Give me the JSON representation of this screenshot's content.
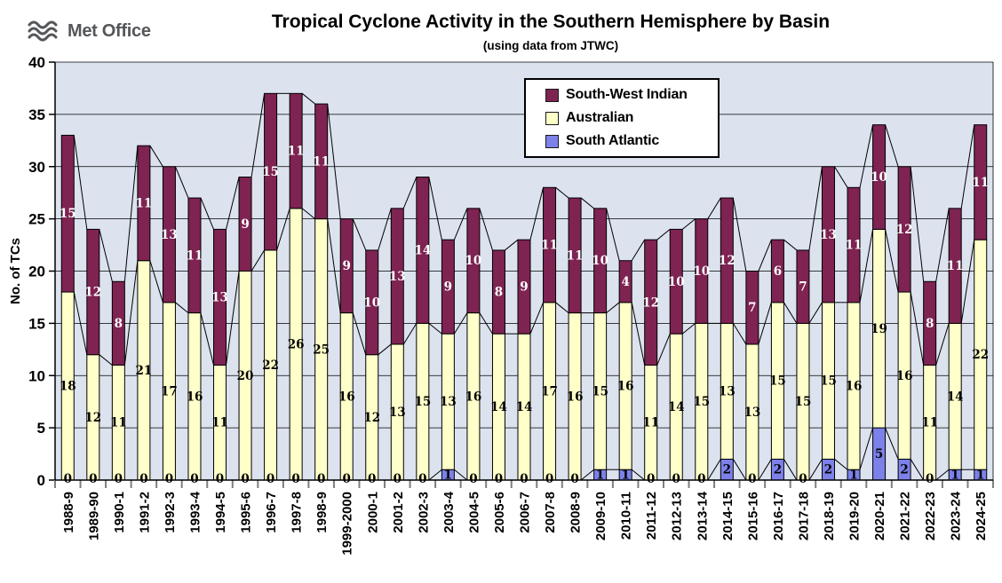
{
  "logo": {
    "text": "Met Office",
    "color": "#54565A"
  },
  "chart_data": {
    "type": "bar",
    "stacked": true,
    "title": "Tropical Cyclone Activity in the Southern Hemisphere by Basin",
    "subtitle": "(using data from JTWC)",
    "xlabel": "",
    "ylabel": "No. of TCs",
    "ylim": [
      0,
      40
    ],
    "ytick_step": 5,
    "yticks": [
      0,
      5,
      10,
      15,
      20,
      25,
      30,
      35,
      40
    ],
    "grid": true,
    "plot_bg": "#DCE3EF",
    "legend_position": "top-right-inside",
    "legend_order_top_to_bottom": [
      "South-West Indian",
      "Australian",
      "South Atlantic"
    ],
    "stack_order": "bottom-to-top",
    "categories": [
      "1988-9",
      "1989-90",
      "1990-1",
      "1991-2",
      "1992-3",
      "1993-4",
      "1994-5",
      "1995-6",
      "1996-7",
      "1997-8",
      "1998-9",
      "1999-2000",
      "2000-1",
      "2001-2",
      "2002-3",
      "2003-4",
      "2004-5",
      "2005-6",
      "2006-7",
      "2007-8",
      "2008-9",
      "2009-10",
      "2010-11",
      "2011-12",
      "2012-13",
      "2013-14",
      "2014-15",
      "2015-16",
      "2016-17",
      "2017-18",
      "2018-19",
      "2019-20",
      "2020-21",
      "2021-22",
      "2022-23",
      "2023-24",
      "2024-25"
    ],
    "series": [
      {
        "name": "South Atlantic",
        "color": "#7C81E9",
        "label_color": "#000000",
        "show_zero_labels": true,
        "values": [
          0,
          0,
          0,
          0,
          0,
          0,
          0,
          0,
          0,
          0,
          0,
          0,
          0,
          0,
          0,
          1,
          0,
          0,
          0,
          0,
          0,
          1,
          1,
          0,
          0,
          0,
          2,
          0,
          2,
          0,
          2,
          1,
          5,
          2,
          0,
          1,
          1
        ]
      },
      {
        "name": "Australian",
        "color": "#FFFFC9",
        "label_color": "#000000",
        "show_zero_labels": false,
        "values": [
          18,
          12,
          11,
          21,
          17,
          16,
          11,
          20,
          22,
          26,
          25,
          16,
          12,
          13,
          15,
          13,
          16,
          14,
          14,
          17,
          16,
          15,
          16,
          11,
          14,
          15,
          13,
          13,
          15,
          15,
          15,
          16,
          19,
          16,
          11,
          14,
          22
        ]
      },
      {
        "name": "South-West Indian",
        "color": "#7E2352",
        "label_color": "#FFFFFF",
        "show_zero_labels": false,
        "values": [
          15,
          12,
          8,
          11,
          13,
          11,
          13,
          9,
          15,
          11,
          11,
          9,
          10,
          13,
          14,
          9,
          10,
          8,
          9,
          11,
          11,
          10,
          4,
          12,
          10,
          10,
          12,
          7,
          6,
          7,
          13,
          11,
          10,
          12,
          8,
          11,
          11
        ]
      }
    ]
  }
}
